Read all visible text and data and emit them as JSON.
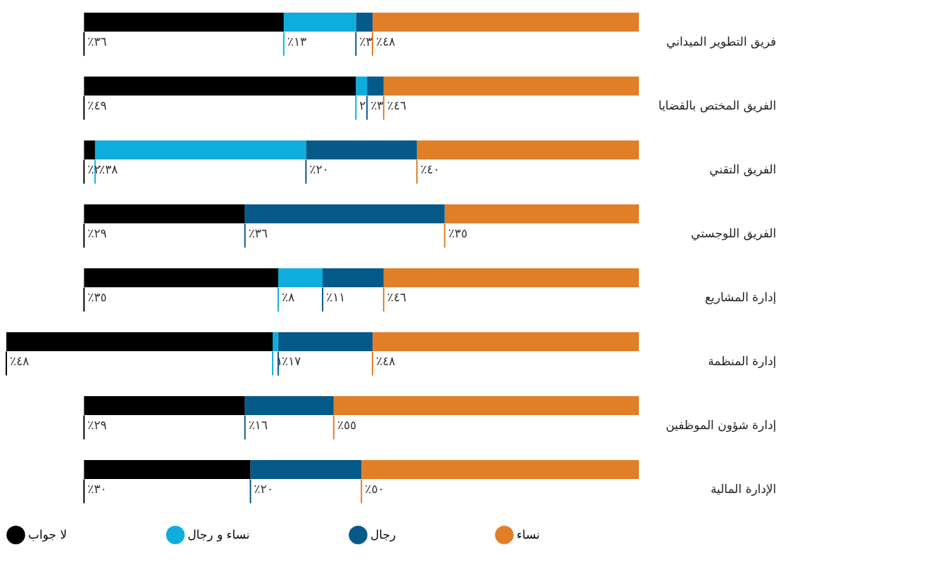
{
  "chart_data": {
    "type": "bar",
    "orientation": "horizontal",
    "stacked": true,
    "tick_labels": "y",
    "legend": "bottom",
    "grid": false,
    "categories": [
      "فريق التطوير الميداني",
      "الفريق المختص بالقضايا",
      "الفريق التقني",
      "الفريق اللوجستي",
      "إدارة المشاريع",
      "إدارة المنظمة",
      "إدارة شؤون الموظفين",
      "الإدارة المالية"
    ],
    "series": [
      {
        "name": "نساء",
        "color": "#e07f27",
        "values": [
          48,
          46,
          40,
          35,
          46,
          48,
          55,
          50
        ],
        "value_labels": [
          "٪٤٨",
          "٪٤٦",
          "٪٤٠",
          "٪٣٥",
          "٪٤٦",
          "٪٤٨",
          "٪٥٥",
          "٪٥٠"
        ]
      },
      {
        "name": "رجال",
        "color": "#065a8a",
        "values": [
          3,
          3,
          20,
          36,
          11,
          17,
          16,
          20
        ],
        "value_labels": [
          "٪٣",
          "٪٣",
          "٪٢٠",
          "٪٣٦",
          "٪١١",
          "٪١٧",
          "٪١٦",
          "٪٢٠"
        ]
      },
      {
        "name": "نساء و رجال",
        "color": "#0fadde",
        "values": [
          13,
          2,
          38,
          null,
          8,
          1,
          null,
          null
        ],
        "value_labels": [
          "٪١٣",
          "٢",
          "٪٣٨",
          null,
          "٪٨",
          "١",
          null,
          null
        ]
      },
      {
        "name": "لا جواب",
        "color": "#000000",
        "values": [
          36,
          49,
          2,
          29,
          35,
          48,
          29,
          30
        ],
        "value_labels": [
          "٪٣٦",
          "٪٤٩",
          "٪٢",
          "٪٢٩",
          "٪٣٥",
          "٪٤٨",
          "٪٢٩",
          "٪٣٠"
        ]
      }
    ]
  }
}
